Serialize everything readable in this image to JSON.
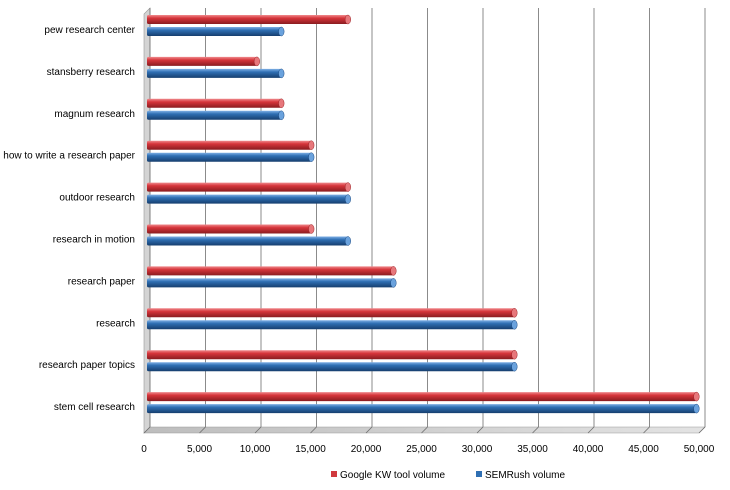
{
  "colors": {
    "google": "#d0393e",
    "semrush": "#2f6fb3",
    "grid": "#6e6e6e",
    "floor": "#c7c7c7"
  },
  "chart_data": {
    "type": "bar",
    "orientation": "horizontal",
    "style": "3d-cylinder",
    "categories": [
      "pew research center",
      "stansberry research",
      "magnum research",
      "how to write a research paper",
      "outdoor research",
      "research in motion",
      "research paper",
      "research",
      "research paper topics",
      "stem cell research"
    ],
    "series": [
      {
        "name": "Google KW tool volume",
        "values": [
          18100,
          9900,
          12100,
          14800,
          18100,
          14800,
          22200,
          33100,
          33100,
          49500
        ]
      },
      {
        "name": "SEMRush volume",
        "values": [
          12100,
          12100,
          12100,
          14800,
          18100,
          18100,
          22200,
          33100,
          33100,
          49500
        ]
      }
    ],
    "xlim": [
      0,
      50000
    ],
    "xticks": [
      "0",
      "5,000",
      "10,000",
      "15,000",
      "20,000",
      "25,000",
      "30,000",
      "35,000",
      "40,000",
      "45,000",
      "50,000"
    ],
    "grid": "vertical",
    "legend": "bottom-center"
  }
}
